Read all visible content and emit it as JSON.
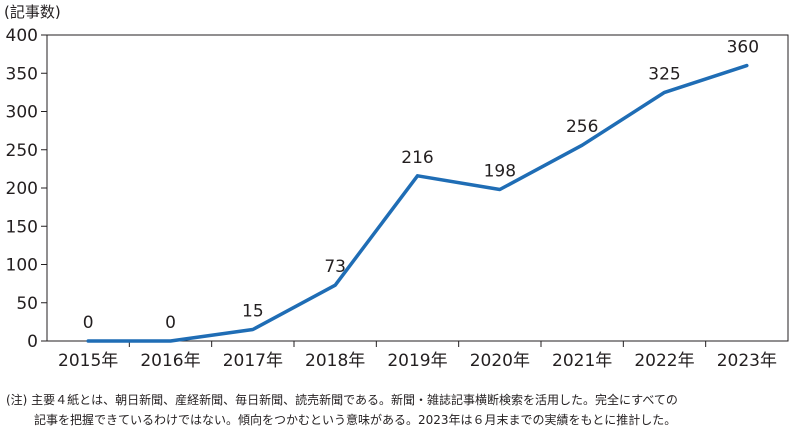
{
  "chart_data": {
    "type": "line",
    "unit_label": "(記事数)",
    "categories": [
      "2015年",
      "2016年",
      "2017年",
      "2018年",
      "2019年",
      "2020年",
      "2021年",
      "2022年",
      "2023年"
    ],
    "series": [
      {
        "values": [
          0,
          0,
          15,
          73,
          216,
          198,
          256,
          325,
          360
        ]
      }
    ],
    "data_labels": [
      "0",
      "0",
      "15",
      "73",
      "216",
      "198",
      "256",
      "325",
      "360"
    ],
    "y_ticks": [
      "0",
      "50",
      "100",
      "150",
      "200",
      "250",
      "300",
      "350",
      "400"
    ],
    "ylim": [
      0,
      400
    ],
    "grid": false,
    "line_color": "#1f6db5"
  },
  "note": {
    "line1": "(注) 主要４紙とは、朝日新聞、産経新聞、毎日新聞、読売新聞である。新聞・雑誌記事横断検索を活用した。完全にすべての",
    "line2": "記事を把握できているわけではない。傾向をつかむという意味がある。2023年は６月末までの実績をもとに推計した。"
  }
}
